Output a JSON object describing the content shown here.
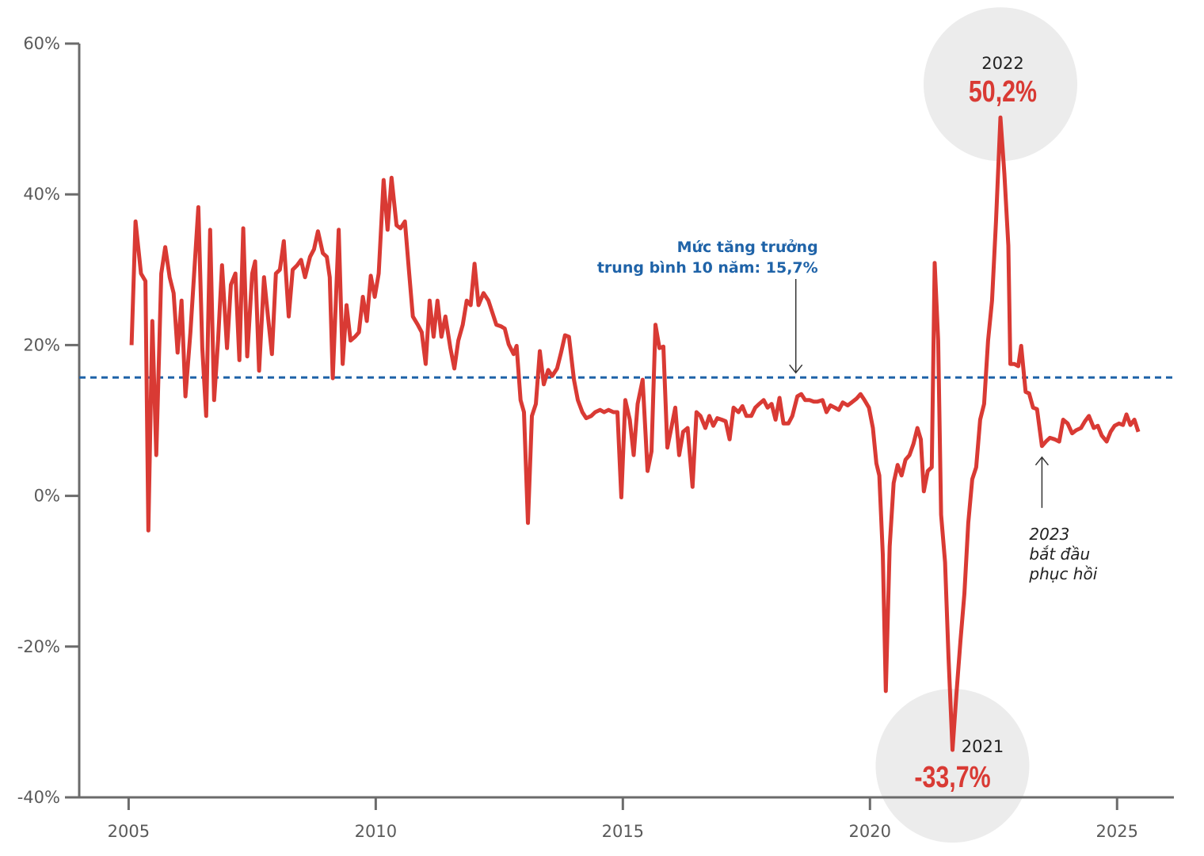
{
  "chart_data": {
    "type": "line",
    "x": [
      2005.06,
      2005.14,
      2005.25,
      2005.34,
      2005.4,
      2005.48,
      2005.56,
      2005.66,
      2005.74,
      2005.83,
      2005.91,
      2005.99,
      2006.07,
      2006.15,
      2006.25,
      2006.33,
      2006.41,
      2006.49,
      2006.57,
      2006.65,
      2006.73,
      2006.81,
      2006.89,
      2006.99,
      2007.07,
      2007.16,
      2007.24,
      2007.32,
      2007.4,
      2007.5,
      2007.56,
      2007.64,
      2007.74,
      2007.82,
      2007.9,
      2007.98,
      2008.06,
      2008.14,
      2008.24,
      2008.32,
      2008.41,
      2008.49,
      2008.57,
      2008.67,
      2008.75,
      2008.83,
      2008.93,
      2009.01,
      2009.07,
      2009.13,
      2009.25,
      2009.33,
      2009.41,
      2009.49,
      2009.58,
      2009.66,
      2009.74,
      2009.82,
      2009.9,
      2009.98,
      2010.06,
      2010.16,
      2010.24,
      2010.32,
      2010.42,
      2010.5,
      2010.59,
      2010.67,
      2010.75,
      2010.85,
      2010.93,
      2011.01,
      2011.09,
      2011.17,
      2011.25,
      2011.33,
      2011.41,
      2011.51,
      2011.59,
      2011.67,
      2011.76,
      2011.84,
      2011.92,
      2012.0,
      2012.08,
      2012.18,
      2012.28,
      2012.36,
      2012.44,
      2012.53,
      2012.61,
      2012.69,
      2012.79,
      2012.85,
      2012.93,
      2013.0,
      2013.08,
      2013.16,
      2013.24,
      2013.32,
      2013.4,
      2013.49,
      2013.57,
      2013.67,
      2013.75,
      2013.83,
      2013.91,
      2014.01,
      2014.09,
      2014.18,
      2014.26,
      2014.36,
      2014.44,
      2014.54,
      2014.62,
      2014.71,
      2014.81,
      2014.89,
      2014.97,
      2015.05,
      2015.14,
      2015.22,
      2015.3,
      2015.4,
      2015.5,
      2015.58,
      2015.66,
      2015.74,
      2015.82,
      2015.9,
      2015.98,
      2016.06,
      2016.14,
      2016.22,
      2016.31,
      2016.41,
      2016.49,
      2016.57,
      2016.67,
      2016.75,
      2016.83,
      2016.91,
      2017.0,
      2017.08,
      2017.16,
      2017.24,
      2017.34,
      2017.42,
      2017.5,
      2017.6,
      2017.68,
      2017.76,
      2017.85,
      2017.93,
      2018.01,
      2018.09,
      2018.17,
      2018.25,
      2018.35,
      2018.43,
      2018.53,
      2018.61,
      2018.69,
      2018.78,
      2018.86,
      2018.94,
      2019.04,
      2019.12,
      2019.2,
      2019.29,
      2019.37,
      2019.45,
      2019.55,
      2019.63,
      2019.73,
      2019.81,
      2019.89,
      2019.98,
      2020.06,
      2020.13,
      2020.19,
      2020.26,
      2020.32,
      2020.4,
      2020.48,
      2020.56,
      2020.64,
      2020.72,
      2020.8,
      2020.88,
      2020.96,
      2021.03,
      2021.09,
      2021.17,
      2021.25,
      2021.31,
      2021.38,
      2021.44,
      2021.52,
      2021.59,
      2021.67,
      2021.75,
      2021.83,
      2021.91,
      2021.99,
      2022.07,
      2022.15,
      2022.23,
      2022.31,
      2022.39,
      2022.47,
      2022.55,
      2022.64,
      2022.72,
      2022.8,
      2022.84,
      2022.92,
      2023.0,
      2023.06,
      2023.15,
      2023.22,
      2023.3,
      2023.38,
      2023.48,
      2023.56,
      2023.64,
      2023.74,
      2023.83,
      2023.91,
      2024.0,
      2024.09,
      2024.17,
      2024.27,
      2024.35,
      2024.43,
      2024.53,
      2024.61,
      2024.69,
      2024.79,
      2024.87,
      2024.95,
      2025.04,
      2025.12,
      2025.19,
      2025.27,
      2025.35,
      2025.43
    ],
    "series": [
      {
        "color": "#d93a34",
        "values": [
          20,
          36.4,
          29.5,
          28.5,
          -4.6,
          23.2,
          5.4,
          29.5,
          33,
          29,
          26.9,
          19,
          25.9,
          13.2,
          21.7,
          30,
          38.3,
          19.6,
          10.6,
          35.3,
          12.7,
          20.6,
          30.6,
          19.6,
          28,
          29.5,
          18,
          35.5,
          18.5,
          29.5,
          31.1,
          16.6,
          29,
          23.8,
          18.8,
          29.5,
          30,
          33.8,
          23.8,
          30,
          30.6,
          31.3,
          29,
          31.7,
          32.7,
          35.1,
          32.2,
          31.7,
          29,
          15.6,
          35.3,
          17.5,
          25.3,
          20.6,
          21.1,
          21.7,
          26.4,
          23.2,
          29.2,
          26.4,
          29.5,
          41.9,
          35.3,
          42.2,
          35.9,
          35.5,
          36.4,
          30,
          23.8,
          22.7,
          21.7,
          17.5,
          25.9,
          21.1,
          25.9,
          21.1,
          23.8,
          19.6,
          16.9,
          20.6,
          22.7,
          25.9,
          25.3,
          30.8,
          25.3,
          26.9,
          25.9,
          24.3,
          22.7,
          22.5,
          22.2,
          20.1,
          18.8,
          19.9,
          12.7,
          11.1,
          -3.6,
          10.6,
          12.2,
          19.2,
          14.8,
          16.7,
          15.9,
          16.9,
          19,
          21.3,
          21.1,
          15.4,
          12.7,
          11.1,
          10.3,
          10.6,
          11.1,
          11.4,
          11.1,
          11.4,
          11.1,
          11.1,
          -0.2,
          12.7,
          10.1,
          5.4,
          12.2,
          15.4,
          3.3,
          5.9,
          22.7,
          19.6,
          19.8,
          6.4,
          9,
          11.7,
          5.4,
          8.5,
          9,
          1.2,
          11.1,
          10.6,
          9,
          10.6,
          9.3,
          10.3,
          10.1,
          9.9,
          7.5,
          11.7,
          11.1,
          11.9,
          10.6,
          10.6,
          11.7,
          12.2,
          12.7,
          11.7,
          12.2,
          10.1,
          13,
          9.6,
          9.6,
          10.6,
          13.2,
          13.5,
          12.7,
          12.7,
          12.5,
          12.5,
          12.7,
          11.1,
          12,
          11.7,
          11.4,
          12.4,
          12,
          12.4,
          12.9,
          13.5,
          12.7,
          11.7,
          9,
          4.3,
          2.7,
          -7.8,
          -25.9,
          -6.7,
          1.7,
          4.1,
          2.7,
          4.8,
          5.4,
          6.9,
          9,
          7.5,
          0.6,
          3.3,
          3.8,
          30.9,
          20.6,
          -2.5,
          -8.8,
          -21.5,
          -33.7,
          -26.2,
          -19.3,
          -13,
          -3.6,
          2.2,
          3.8,
          10.1,
          12.2,
          20.6,
          25.9,
          36.4,
          50.2,
          42.7,
          33.2,
          17.5,
          17.5,
          17.2,
          19.9,
          13.8,
          13.6,
          11.7,
          11.5,
          6.6,
          7.2,
          7.7,
          7.5,
          7.2,
          10.1,
          9.6,
          8.3,
          8.7,
          9,
          9.9,
          10.6,
          9,
          9.3,
          8,
          7.2,
          8.5,
          9.3,
          9.6,
          9.4,
          10.8,
          9.4,
          10.1,
          8.5
        ]
      }
    ],
    "xlim": [
      2004,
      2026.15
    ],
    "xticks": [
      2005,
      2010,
      2015,
      2020,
      2025
    ],
    "ylim": [
      -40,
      60
    ],
    "yticks": [
      {
        "value": -40,
        "label": "-40%"
      },
      {
        "value": -20,
        "label": "-20%"
      },
      {
        "value": 0,
        "label": "0%"
      },
      {
        "value": 20,
        "label": "20%"
      },
      {
        "value": 40,
        "label": "40%"
      },
      {
        "value": 60,
        "label": "60%"
      }
    ],
    "reference_line": {
      "value": 15.7,
      "color": "#1f63a8",
      "label_lines": [
        "Mức tăng trưởng",
        "trung bình 10 năm: 15,7%"
      ],
      "arrow_x": 2018.5
    },
    "annotations": [
      {
        "year": "2022",
        "x": 2022.64,
        "value": 50.2,
        "label": "50,2%",
        "side": "top"
      },
      {
        "year": "2021",
        "x": 2021.67,
        "value": -33.7,
        "label": "-33,7%",
        "side": "bottom"
      }
    ],
    "note": {
      "x": 2023.48,
      "value": 6.6,
      "lines": [
        "2023",
        "bắt đầu",
        "phục hồi"
      ]
    }
  }
}
